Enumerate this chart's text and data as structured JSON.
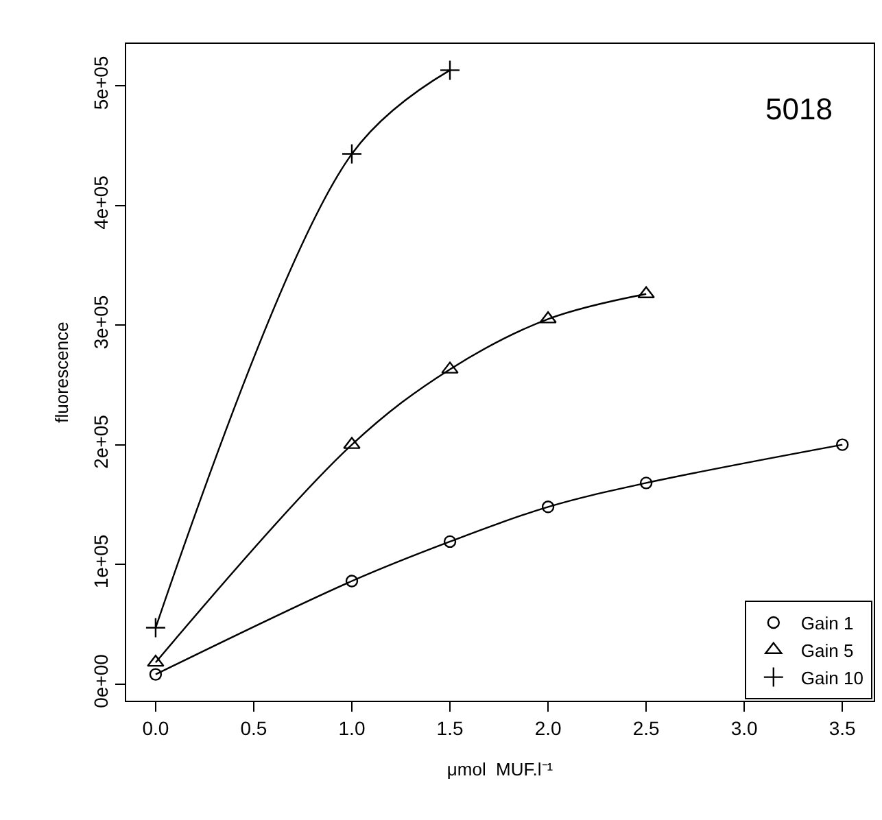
{
  "chart_data": {
    "type": "line",
    "xlabel": "μmol  MUF.l⁻¹",
    "ylabel": "fluorescence",
    "annotations": [
      "5018"
    ],
    "series": [
      {
        "name": "Gain 1",
        "color": "#000000",
        "marker": "circle",
        "x": [
          0,
          1,
          1.5,
          2,
          2.5,
          3.5
        ],
        "values": [
          8000,
          86000,
          119000,
          148000,
          168000,
          200000
        ]
      },
      {
        "name": "Gain 5",
        "color": "#000000",
        "marker": "triangle",
        "x": [
          0,
          1,
          1.5,
          2,
          2.5
        ],
        "values": [
          18000,
          200000,
          263000,
          305000,
          326000
        ]
      },
      {
        "name": "Gain 10",
        "color": "#000000",
        "marker": "cross",
        "x": [
          0,
          1,
          1.5
        ],
        "values": [
          47000,
          443000,
          513000
        ]
      }
    ],
    "xlim": [
      -0.15,
      3.66
    ],
    "xticks": [
      {
        "value": 0,
        "label": "0.0"
      },
      0.5,
      {
        "value": 1,
        "label": "1.0"
      },
      1.5,
      {
        "value": 2,
        "label": "2.0"
      },
      2.5,
      {
        "value": 3,
        "label": "3.0"
      },
      3.5
    ],
    "ylim": [
      -14000,
      535000
    ],
    "yticks": [
      {
        "value": 0,
        "label": "0e+00"
      },
      {
        "value": 100000,
        "label": "1e+05"
      },
      {
        "value": 200000,
        "label": "2e+05"
      },
      {
        "value": 300000,
        "label": "3e+05"
      },
      {
        "value": 400000,
        "label": "4e+05"
      },
      {
        "value": 500000,
        "label": "5e+05"
      }
    ],
    "legend": "bottom right",
    "line_style": "solid"
  }
}
